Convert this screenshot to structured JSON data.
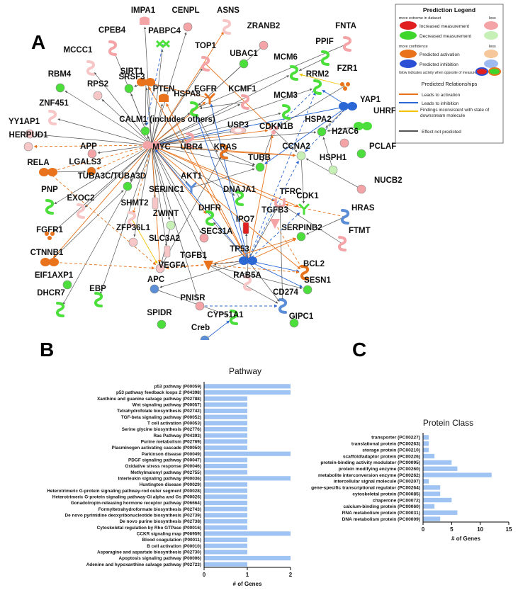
{
  "panel_labels": {
    "a": "A",
    "b": "B",
    "c": "C"
  },
  "network": {
    "nodes": [
      {
        "id": "IMPA1",
        "label": "IMPA1",
        "shape": "phosphatase",
        "color": "#f4a3a6"
      },
      {
        "id": "CENPL",
        "label": "CENPL",
        "shape": "circle",
        "color": "#f4a3a6"
      },
      {
        "id": "ASNS",
        "label": "ASNS",
        "shape": "enzyme",
        "color": "#f7c6c6"
      },
      {
        "id": "ZRANB2",
        "label": "ZRANB2",
        "shape": "circle",
        "color": "#f4a3a6"
      },
      {
        "id": "FNTA",
        "label": "FNTA",
        "shape": "enzyme",
        "color": "#f4a3a6"
      },
      {
        "id": "CPEB4",
        "label": "CPEB4",
        "shape": "enzyme",
        "color": "#f4a3a6"
      },
      {
        "id": "PABPC4",
        "label": "PABPC4",
        "shape": "translation",
        "color": "#4cdf3c"
      },
      {
        "id": "MCCC1",
        "label": "MCCC1",
        "shape": "enzyme",
        "color": "#f7c6c6"
      },
      {
        "id": "SIRT1",
        "label": "SIRT1",
        "shape": "transcription",
        "color": "#e8731c"
      },
      {
        "id": "TOP1",
        "label": "TOP1",
        "shape": "enzyme",
        "color": "#f4a3a6"
      },
      {
        "id": "PPIF",
        "label": "PPIF",
        "shape": "enzyme",
        "color": "#4cdf3c"
      },
      {
        "id": "MCM6",
        "label": "MCM6",
        "shape": "enzyme",
        "color": "#4cdf3c"
      },
      {
        "id": "FZR1",
        "label": "FZR1",
        "shape": "complex",
        "color": "#e8731c"
      },
      {
        "id": "RBM4",
        "label": "RBM4",
        "shape": "circle",
        "color": "#4cdf3c"
      },
      {
        "id": "UBAC1",
        "label": "UBAC1",
        "shape": "circle",
        "color": "#4cdf3c"
      },
      {
        "id": "RPS2",
        "label": "RPS2",
        "shape": "circle",
        "color": "#f7c6c6"
      },
      {
        "id": "SRSF3",
        "label": "SRSF3",
        "shape": "circle",
        "color": "#4cdf3c"
      },
      {
        "id": "PTEN",
        "label": "PTEN",
        "shape": "phosphatase",
        "color": "#e8731c"
      },
      {
        "id": "EGFR",
        "label": "EGFR",
        "shape": "kinase",
        "color": "#e8731c"
      },
      {
        "id": "RRM2",
        "label": "RRM2",
        "shape": "enzyme",
        "color": "#4cdf3c"
      },
      {
        "id": "YAP1",
        "label": "YAP1",
        "shape": "transcription",
        "color": "#2a67d4"
      },
      {
        "id": "ZNF451",
        "label": "ZNF451",
        "shape": "enzyme",
        "color": "#f7c6c6"
      },
      {
        "id": "KCMF1",
        "label": "KCMF1",
        "shape": "enzyme",
        "color": "#f4a3a6"
      },
      {
        "id": "HSPA8",
        "label": "HSPA8",
        "shape": "enzyme",
        "color": "#4cdf3c"
      },
      {
        "id": "MCM3",
        "label": "MCM3",
        "shape": "enzyme",
        "color": "#4cdf3c"
      },
      {
        "id": "UHRF1",
        "label": "UHRF1",
        "shape": "transcription",
        "color": "#4cdf3c"
      },
      {
        "id": "YY1AP1",
        "label": "YY1AP1",
        "shape": "circle",
        "color": "#f7c6c6"
      },
      {
        "id": "CALM1",
        "label": "CALM1 (includes others)",
        "shape": "circle",
        "color": "#4cdf3c"
      },
      {
        "id": "USP3",
        "label": "USP3",
        "shape": "peptidase",
        "color": "#f7c6c6"
      },
      {
        "id": "CDKN1B",
        "label": "CDKN1B",
        "shape": "complex",
        "color": "#f4a3a6"
      },
      {
        "id": "HSPA2",
        "label": "HSPA2",
        "shape": "circle",
        "color": "#4cdf3c"
      },
      {
        "id": "H2AC6",
        "label": "H2AC6",
        "shape": "circle",
        "color": "#f4a3a6"
      },
      {
        "id": "HERPUD1",
        "label": "HERPUD1",
        "shape": "circle",
        "color": "#f7c6c6"
      },
      {
        "id": "APP",
        "label": "APP",
        "shape": "circle",
        "color": "#f4a3a6"
      },
      {
        "id": "MYC",
        "label": "MYC",
        "shape": "transcription",
        "color": "#f4a3a6"
      },
      {
        "id": "UBR4",
        "label": "UBR4",
        "shape": "enzyme",
        "color": "#f4a3a6"
      },
      {
        "id": "KRAS",
        "label": "KRAS",
        "shape": "enzyme",
        "color": "#e8731c"
      },
      {
        "id": "CCNA2",
        "label": "CCNA2",
        "shape": "circle",
        "color": "#c6f0b6"
      },
      {
        "id": "PCLAF",
        "label": "PCLAF",
        "shape": "circle",
        "color": "#4cdf3c"
      },
      {
        "id": "RELA",
        "label": "RELA",
        "shape": "transcription",
        "color": "#e8731c"
      },
      {
        "id": "LGALS3",
        "label": "LGALS3",
        "shape": "circle",
        "color": "#e8731c"
      },
      {
        "id": "TUBA3C",
        "label": "TUBA3C/TUBA3D",
        "shape": "circle",
        "color": "#4cdf3c"
      },
      {
        "id": "TUBB",
        "label": "TUBB",
        "shape": "circle",
        "color": "#4cdf3c"
      },
      {
        "id": "HSPH1",
        "label": "HSPH1",
        "shape": "circle",
        "color": "#c6f0b6"
      },
      {
        "id": "AKT1",
        "label": "AKT1",
        "shape": "kinase",
        "color": "#5b8ed6"
      },
      {
        "id": "SERINC1",
        "label": "SERINC1",
        "shape": "transporter",
        "color": "#f7c6c6"
      },
      {
        "id": "DNAJA1",
        "label": "DNAJA1",
        "shape": "enzyme",
        "color": "#4cdf3c"
      },
      {
        "id": "TFRC",
        "label": "TFRC",
        "shape": "receptor",
        "color": "#f4a3a6"
      },
      {
        "id": "NUCB2",
        "label": "NUCB2",
        "shape": "circle",
        "color": "#f4a3a6"
      },
      {
        "id": "PNP",
        "label": "PNP",
        "shape": "enzyme",
        "color": "#4cdf3c"
      },
      {
        "id": "EXOC2",
        "label": "EXOC2",
        "shape": "enzyme",
        "color": "#f7c6c6"
      },
      {
        "id": "SHMT2",
        "label": "SHMT2",
        "shape": "enzyme",
        "color": "#f7c6c6"
      },
      {
        "id": "DHFR",
        "label": "DHFR",
        "shape": "enzyme",
        "color": "#4cdf3c"
      },
      {
        "id": "CDK1",
        "label": "CDK1",
        "shape": "kinase",
        "color": "#4cdf3c"
      },
      {
        "id": "HRAS",
        "label": "HRAS",
        "shape": "enzyme",
        "color": "#5b8ed6"
      },
      {
        "id": "FGFR1",
        "label": "FGFR1",
        "shape": "complex",
        "color": "#e8731c"
      },
      {
        "id": "ZWINT",
        "label": "ZWINT",
        "shape": "circle",
        "color": "#c6f0b6"
      },
      {
        "id": "SEC31A",
        "label": "SEC31A",
        "shape": "circle",
        "color": "#f4a3a6"
      },
      {
        "id": "IPO7",
        "label": "IPO7",
        "shape": "transporter",
        "color": "#e02020"
      },
      {
        "id": "TGFB3",
        "label": "TGFB3",
        "shape": "cytokine",
        "color": "#f4a3a6"
      },
      {
        "id": "SERPINB2",
        "label": "SERPINB2",
        "shape": "circle",
        "color": "#4cdf3c"
      },
      {
        "id": "FTMT",
        "label": "FTMT",
        "shape": "enzyme",
        "color": "#f4a3a6"
      },
      {
        "id": "ZFP36L1",
        "label": "ZFP36L1",
        "shape": "circle",
        "color": "#f7c6c6"
      },
      {
        "id": "SLC3A2",
        "label": "SLC3A2",
        "shape": "transporter",
        "color": "#f7c6c6"
      },
      {
        "id": "CTNNB1",
        "label": "CTNNB1",
        "shape": "transcription",
        "color": "#e8731c"
      },
      {
        "id": "TGFB1",
        "label": "TGFB1",
        "shape": "cytokine",
        "color": "#e8731c"
      },
      {
        "id": "TP53",
        "label": "TP53",
        "shape": "transcription",
        "color": "#2a67d4"
      },
      {
        "id": "VEGFA",
        "label": "VEGFA",
        "shape": "circle",
        "color": "#f7c6c6"
      },
      {
        "id": "BCL2",
        "label": "BCL2",
        "shape": "enzyme",
        "color": "#e8731c"
      },
      {
        "id": "RAB5A",
        "label": "RAB5A",
        "shape": "enzyme",
        "color": "#f7c6c6"
      },
      {
        "id": "SESN1",
        "label": "SESN1",
        "shape": "circle",
        "color": "#4cdf3c"
      },
      {
        "id": "EIF1AXP1",
        "label": "EIF1AXP1",
        "shape": "circle",
        "color": "#4cdf3c"
      },
      {
        "id": "EBP",
        "label": "EBP",
        "shape": "enzyme",
        "color": "#4cdf3c"
      },
      {
        "id": "APC",
        "label": "APC",
        "shape": "circle",
        "color": "#5b8ed6"
      },
      {
        "id": "DHCR7",
        "label": "DHCR7",
        "shape": "enzyme",
        "color": "#4cdf3c"
      },
      {
        "id": "PNISR",
        "label": "PNISR",
        "shape": "circle",
        "color": "#f4a3a6"
      },
      {
        "id": "CD274",
        "label": "CD274",
        "shape": "enzyme",
        "color": "#5b8ed6"
      },
      {
        "id": "SPIDR",
        "label": "SPIDR",
        "shape": "circle",
        "color": "#4cdf3c"
      },
      {
        "id": "CYP51A1",
        "label": "CYP51A1",
        "shape": "enzyme",
        "color": "#4cdf3c"
      },
      {
        "id": "GIPC1",
        "label": "GIPC1",
        "shape": "circle",
        "color": "#4cdf3c"
      },
      {
        "id": "Creb",
        "label": "Creb",
        "shape": "circle",
        "color": "#5b8ed6"
      }
    ],
    "legend": {
      "title": "Prediction Legend",
      "measurement_more": "more extreme in dataset",
      "measurement_less": "less",
      "increased": "Increased measurement",
      "decreased": "Decreased measurement",
      "confidence_more": "more confidence",
      "confidence_less": "less",
      "activation": "Predicted activation",
      "inhibition": "Predicted inhibition",
      "glow": "Glow indicates activity when opposite of measurement",
      "relationships_title": "Predicted Relationships",
      "rel_activation": "Leads to activation",
      "rel_inhibition": "Leads to inhibition",
      "rel_inconsistent": "Findings inconsistent with state of downstream molecule",
      "rel_none": "Effect not predicted",
      "colors": {
        "increased_strong": "#e02020",
        "increased_weak": "#f4a3a6",
        "decreased_strong": "#3ed62c",
        "decreased_weak": "#c6f0b6",
        "activation_strong": "#e8731c",
        "activation_weak": "#f5c79a",
        "inhibition_strong": "#2a4fd6",
        "inhibition_weak": "#9fbaf0",
        "rel_activation": "#e8731c",
        "rel_inhibition": "#2a67d4",
        "rel_inconsistent": "#f2c200",
        "rel_none": "#555555"
      }
    }
  },
  "chart_data": [
    {
      "type": "bar",
      "orientation": "horizontal",
      "title": "Pathway",
      "xlabel": "# of Genes",
      "ylabel": "",
      "xlim": [
        0,
        2
      ],
      "xticks": [
        0,
        1,
        2
      ],
      "color": "#9fc3f2",
      "categories": [
        "p53 pathway (P00059)",
        "p53 pathway feedback loops 2 (P04398)",
        "Xanthine and guanine salvage pathway (P02788)",
        "Wnt signaling pathway (P00057)",
        "Tetrahydrofolate biosynthesis (P02742)",
        "TGF-beta signaling pathway (P00052)",
        "T cell activation (P00053)",
        "Serine glycine biosynthesis (P02776)",
        "Ras Pathway (P04393)",
        "Purine metabolism (P02769)",
        "Plasminogen activating cascade (P00050)",
        "Parkinson disease (P00049)",
        "PDGF signaling pathway (P00047)",
        "Oxidative stress response (P00046)",
        "Methylmalonyl pathway (P02755)",
        "Interleukin signaling pathway (P00036)",
        "Huntington disease (P00029)",
        "Heterotrimeric G-protein signaling pathway-rod outer segment (P00028)",
        "Heterotrimeric G-protein signaling pathway-Gi alpha and Gs (P00026)",
        "Gonadotropin-releasing hormone receptor pathway (P06664)",
        "Formyltetrahydroformate biosynthesis (P02743)",
        "De novo pyrimidine deoxyribonucleotide biosynthesis (P02739)",
        "De novo purine biosynthesis (P02738)",
        "Cytoskeletal regulation by Rho GTPase (P00016)",
        "CCKR signaling map (P06959)",
        "Blood coagulation (P00011)",
        "B cell activation (P00010)",
        "Asparagine and aspartate biosynthesis (P02730)",
        "Apoptosis signaling pathway (P00006)",
        "Adenine and hypoxanthine salvage pathway (P02723)"
      ],
      "values": [
        2,
        2,
        1,
        1,
        1,
        1,
        1,
        1,
        1,
        1,
        1,
        2,
        1,
        1,
        1,
        2,
        1,
        1,
        1,
        1,
        1,
        1,
        1,
        1,
        2,
        1,
        1,
        1,
        2,
        1
      ]
    },
    {
      "type": "bar",
      "orientation": "horizontal",
      "title": "Protein Class",
      "xlabel": "# of Genes",
      "ylabel": "",
      "xlim": [
        0,
        15
      ],
      "xticks": [
        0,
        5,
        10,
        15
      ],
      "color": "#9fc3f2",
      "categories": [
        "transporter (PC00227)",
        "translational protein (PC00263)",
        "storage protein (PC00210)",
        "scaffold/adaptor protein (PC00226)",
        "protein-binding activity modulator (PC00095)",
        "protein modifying enzyme (PC00260)",
        "metabolite interconversion enzyme (PC00262)",
        "intercellular signal molecule (PC00207)",
        "gene-specific transcriptional regulator (PC00264)",
        "cytoskeletal protein (PC00085)",
        "chaperone (PC00072)",
        "calcium-binding protein (PC00060)",
        "RNA metabolism protein (PC00031)",
        "DNA metabolism protein (PC00009)"
      ],
      "values": [
        1,
        1,
        1,
        2,
        5,
        6,
        12,
        1,
        3,
        3,
        5,
        2,
        6,
        3
      ]
    }
  ]
}
